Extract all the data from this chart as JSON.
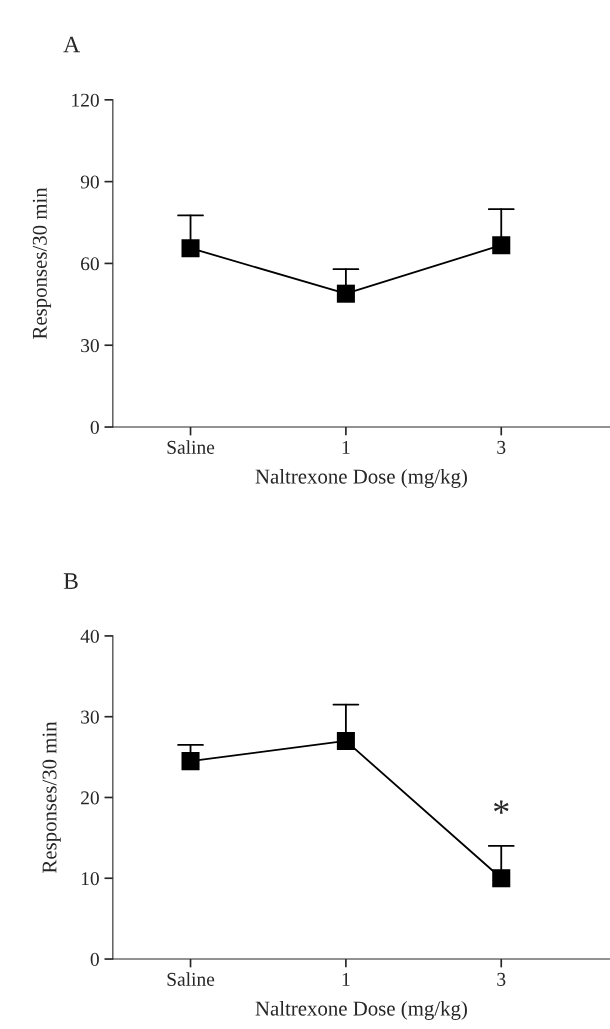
{
  "chart_data": [
    {
      "type": "line",
      "title": "A",
      "xlabel": "Naltrexone Dose (mg/kg)",
      "ylabel": "Responses/30 min",
      "categories": [
        "Saline",
        "1",
        "3"
      ],
      "series": [
        {
          "color": "#000000",
          "values": [
            65.6,
            48.9,
            66.7
          ],
          "errors": [
            [
              65.6,
              77.6
            ],
            [
              48.9,
              57.9
            ],
            [
              66.7,
              79.9
            ]
          ]
        }
      ],
      "ylim": [
        0,
        120
      ],
      "yticks": [
        0,
        30,
        60,
        90,
        120
      ],
      "marker": "square",
      "line_style": "solid",
      "grid": false,
      "legend": false
    },
    {
      "type": "line",
      "title": "B",
      "xlabel": "Naltrexone Dose (mg/kg)",
      "ylabel": "Responses/30 min",
      "categories": [
        "Saline",
        "1",
        "3"
      ],
      "series": [
        {
          "color": "#000000",
          "values": [
            24.5,
            27.0,
            10.0
          ],
          "errors": [
            [
              24.5,
              26.5
            ],
            [
              27.0,
              31.5
            ],
            [
              10.0,
              14.0
            ]
          ]
        }
      ],
      "ylim": [
        0,
        40
      ],
      "yticks": [
        0,
        10,
        20,
        30,
        40
      ],
      "marker": "square",
      "line_style": "solid",
      "grid": false,
      "legend": false,
      "annotations": [
        {
          "text": "*",
          "x": "3",
          "y": 14.0
        }
      ]
    }
  ]
}
